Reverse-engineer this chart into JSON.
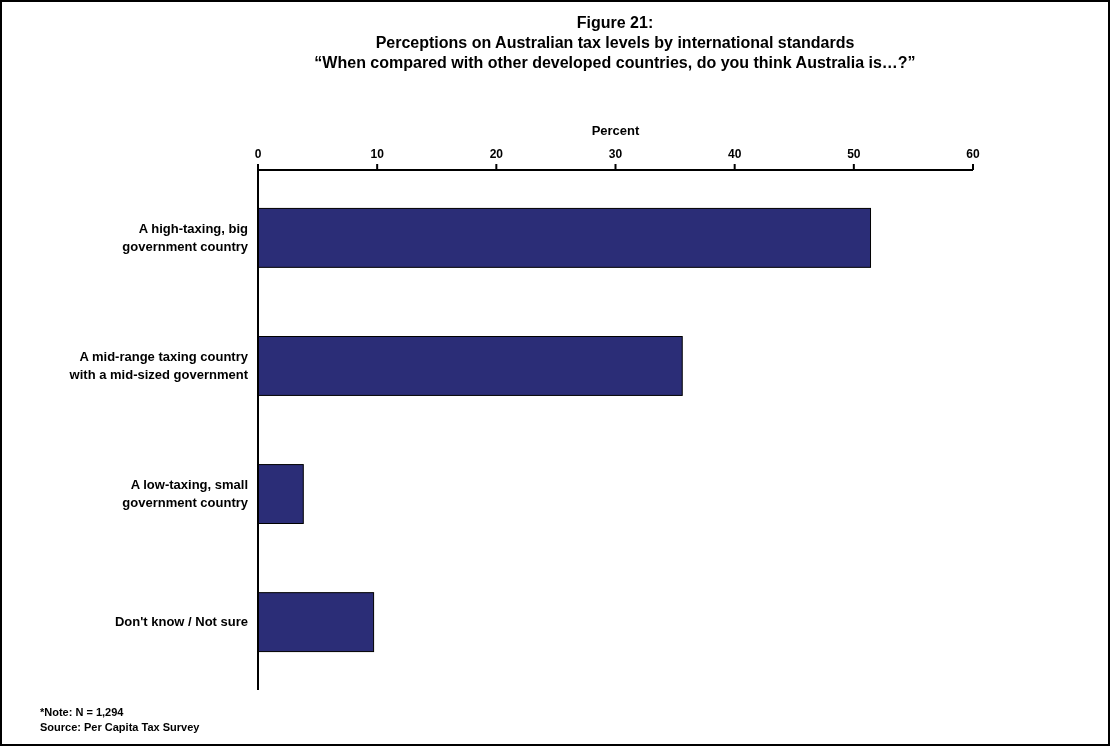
{
  "chart_data": {
    "type": "bar",
    "orientation": "horizontal",
    "title": "Figure 21:\nPerceptions on Australian tax levels by international standards",
    "subtitle": "“When compared with other developed countries, do you think Australia is…?”",
    "xlabel": "Percent",
    "categories": [
      "A high-taxing, big government country",
      "A mid-range taxing country with a mid-sized government",
      "A low-taxing, small government country",
      "Don't know / Not sure"
    ],
    "values": [
      51.4,
      35.6,
      3.8,
      9.7
    ],
    "color": "#2b2d77",
    "xlim": [
      0,
      60
    ],
    "xticks": [
      0,
      10,
      20,
      30,
      40,
      50,
      60
    ],
    "grid": false,
    "annotations": [
      "*Note: N = 1,294",
      "Source: Per Capita Tax Survey"
    ]
  }
}
